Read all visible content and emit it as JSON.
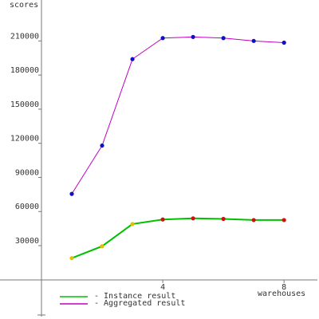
{
  "chart_data": {
    "type": "line",
    "y_label": "scores",
    "x_label": "warehouses",
    "x": [
      1,
      2,
      3,
      4,
      5,
      6,
      7,
      8
    ],
    "series": [
      {
        "name": "- Instance result",
        "color": "#00c000",
        "point_colors": [
          "#e0c000",
          "#e0c000",
          "#e0c000",
          "#d01010",
          "#d01010",
          "#d01010",
          "#d01010",
          "#d01010"
        ],
        "values": [
          19000,
          29500,
          49000,
          53000,
          54000,
          53500,
          52500,
          52500
        ]
      },
      {
        "name": "- Aggregated result",
        "color": "#c000c0",
        "point_colors": [
          "#1010c0",
          "#1010c0",
          "#1010c0",
          "#1010c0",
          "#1010c0",
          "#1010c0",
          "#1010c0",
          "#1010c0"
        ],
        "values": [
          75500,
          118000,
          194000,
          212500,
          213500,
          212500,
          210000,
          208500
        ]
      }
    ],
    "xlim": [
      0,
      9.1
    ],
    "xticks": [
      4,
      8
    ],
    "ylim": [
      -31000,
      246000
    ],
    "yticks": [
      30000,
      60000,
      90000,
      120000,
      150000,
      180000,
      210000
    ]
  }
}
